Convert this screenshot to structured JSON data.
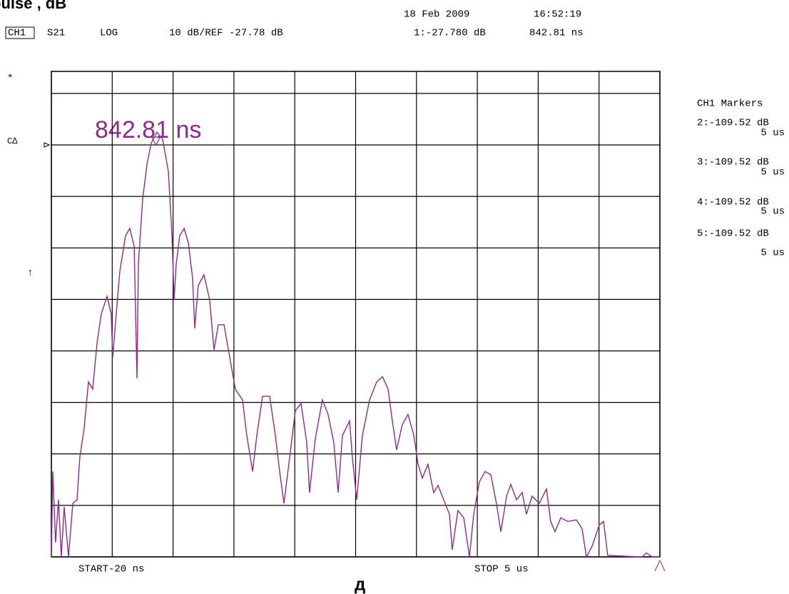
{
  "chart_data": {
    "type": "line",
    "title": "pulse , dB",
    "caption": "д",
    "timestamp": {
      "date": "18 Feb 2009",
      "time": "16:52:19"
    },
    "header": {
      "channel": "CH1",
      "parameter": "S21",
      "format": "LOG",
      "scale": "10 dB/REF -27.78 dB",
      "marker_readout": "1:-27.780 dB",
      "marker_time": "842.81 ns"
    },
    "side_symbols": [
      "*",
      "C∆",
      "↑"
    ],
    "marker_annotation": "842.81 ns",
    "markers_panel": {
      "title": "CH1 Markers",
      "entries": [
        {
          "value": "2:-109.52 dB",
          "time": "5 us"
        },
        {
          "value": "3:-109.52 dB",
          "time": "5 us"
        },
        {
          "value": "4:-109.52 dB",
          "time": "5 us"
        },
        {
          "value": "5:-109.52 dB",
          "time": "5 us"
        }
      ]
    },
    "start_label": "START-20 ns",
    "stop_label": "STOP 5 us",
    "ref_level": -27.78,
    "marker": {
      "x": 842.81,
      "y": -27.78
    },
    "xlim": [
      -20,
      5000
    ],
    "ylim": [
      -107.78,
      -13.5
    ],
    "xticks": [
      -20,
      482,
      984,
      1486,
      1988,
      2490,
      2992,
      3494,
      3996,
      4498,
      5000
    ],
    "yticks": [
      -107.78,
      -97.78,
      -87.78,
      -77.78,
      -67.78,
      -57.78,
      -47.78,
      -37.78,
      -27.78,
      -17.78
    ],
    "grid": true,
    "x": [
      -20,
      -8,
      15,
      39,
      62,
      86,
      121,
      157,
      192,
      215,
      251,
      286,
      321,
      357,
      392,
      439,
      474,
      486,
      510,
      545,
      592,
      627,
      663,
      686,
      698,
      733,
      769,
      804,
      851,
      898,
      945,
      975,
      992,
      1010,
      1039,
      1075,
      1110,
      1145,
      1163,
      1192,
      1239,
      1286,
      1322,
      1357,
      1404,
      1451,
      1498,
      1557,
      1592,
      1640,
      1675,
      1722,
      1781,
      1828,
      1863,
      1899,
      1946,
      1993,
      2040,
      2087,
      2110,
      2157,
      2216,
      2263,
      2310,
      2346,
      2381,
      2440,
      2463,
      2499,
      2546,
      2605,
      2664,
      2711,
      2758,
      2793,
      2828,
      2875,
      2922,
      2970,
      3005,
      3040,
      3087,
      3134,
      3170,
      3217,
      3264,
      3287,
      3334,
      3382,
      3429,
      3464,
      3511,
      3558,
      3605,
      3652,
      3688,
      3735,
      3770,
      3817,
      3864,
      3899,
      3946,
      4005,
      4064,
      4099,
      4135,
      4182,
      4241,
      4311,
      4358,
      4394,
      4441,
      4500,
      4535,
      4570,
      4853,
      4888,
      4935,
      5000
    ],
    "series": [
      {
        "color": "#8e2a8e",
        "values": [
          -107.8,
          -91.2,
          -105.0,
          -96.7,
          -107.8,
          -98.1,
          -107.8,
          -97.4,
          -96.7,
          -88.4,
          -82.8,
          -73.8,
          -75.2,
          -66.2,
          -60.6,
          -57.2,
          -60.6,
          -69.0,
          -62.0,
          -52.3,
          -45.4,
          -44.0,
          -47.5,
          -73.1,
          -50.9,
          -38.4,
          -31.5,
          -27.4,
          -25.3,
          -26.7,
          -32.9,
          -45.4,
          -57.9,
          -50.9,
          -45.4,
          -44.0,
          -46.8,
          -53.7,
          -63.4,
          -55.1,
          -53.0,
          -57.9,
          -67.6,
          -62.7,
          -62.7,
          -69.0,
          -75.2,
          -77.3,
          -84.2,
          -91.2,
          -84.2,
          -76.6,
          -76.6,
          -84.2,
          -91.2,
          -97.4,
          -88.4,
          -79.4,
          -78.0,
          -85.6,
          -95.3,
          -84.9,
          -77.3,
          -80.1,
          -85.6,
          -95.3,
          -84.2,
          -81.4,
          -88.4,
          -96.7,
          -84.2,
          -77.3,
          -73.8,
          -72.8,
          -75.2,
          -81.4,
          -87.0,
          -82.1,
          -80.1,
          -84.2,
          -89.8,
          -92.5,
          -89.8,
          -95.3,
          -93.9,
          -96.7,
          -99.5,
          -106.4,
          -98.8,
          -100.2,
          -107.8,
          -99.5,
          -93.2,
          -91.2,
          -91.8,
          -97.4,
          -102.9,
          -96.0,
          -93.7,
          -96.7,
          -95.3,
          -99.5,
          -96.0,
          -97.4,
          -94.6,
          -100.9,
          -102.9,
          -100.2,
          -100.9,
          -100.6,
          -102.3,
          -107.8,
          -105.7,
          -101.6,
          -100.9,
          -107.5,
          -107.8,
          -107.0,
          -107.8,
          -107.8
        ]
      }
    ]
  }
}
